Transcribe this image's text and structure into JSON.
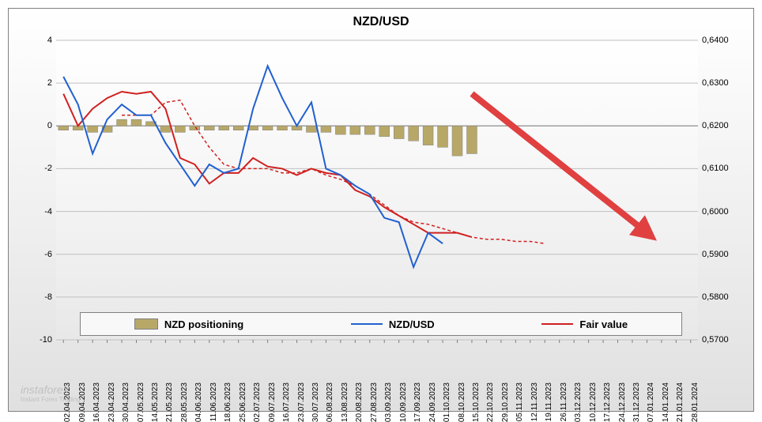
{
  "chart": {
    "title": "NZD/USD",
    "title_fontsize": 16,
    "title_color": "#000000",
    "background_gradient": [
      "#ffffff",
      "#f0f0f0",
      "#e0e0e0"
    ],
    "border_color": "#808080",
    "axis_left": {
      "min": -10,
      "max": 4,
      "ticks": [
        -10,
        -8,
        -6,
        -4,
        -2,
        0,
        2,
        4
      ],
      "label_fontsize": 11,
      "label_color": "#000000"
    },
    "axis_right": {
      "min": 0.57,
      "max": 0.64,
      "ticks": [
        "0,5700",
        "0,5800",
        "0,5900",
        "0,6000",
        "0,6100",
        "0,6200",
        "0,6300",
        "0,6400"
      ],
      "tick_values": [
        0.57,
        0.58,
        0.59,
        0.6,
        0.61,
        0.62,
        0.63,
        0.64
      ],
      "label_fontsize": 11,
      "label_color": "#000000"
    },
    "axis_x": {
      "labels": [
        "02.04.2023",
        "09.04.2023",
        "16.04.2023",
        "23.04.2023",
        "30.04.2023",
        "07.05.2023",
        "14.05.2023",
        "21.05.2023",
        "28.05.2023",
        "04.06.2023",
        "11.06.2023",
        "18.06.2023",
        "25.06.2023",
        "02.07.2023",
        "09.07.2023",
        "16.07.2023",
        "23.07.2023",
        "30.07.2023",
        "06.08.2023",
        "13.08.2023",
        "20.08.2023",
        "27.08.2023",
        "03.09.2023",
        "10.09.2023",
        "17.09.2023",
        "24.09.2023",
        "01.10.2023",
        "08.10.2023",
        "15.10.2023",
        "22.10.2023",
        "29.10.2023",
        "05.11.2023",
        "12.11.2023",
        "19.11.2023",
        "26.11.2023",
        "03.12.2023",
        "10.12.2023",
        "17.12.2023",
        "24.12.2023",
        "31.12.2023",
        "07.01.2024",
        "14.01.2024",
        "21.01.2024",
        "28.01.2024"
      ],
      "label_fontsize": 10,
      "rotation": -90
    },
    "gridline_color": "#c0c0c0",
    "series": {
      "positioning": {
        "label": "NZD positioning",
        "type": "bar",
        "color": "#b8a868",
        "border_color": "#808080",
        "bar_width": 0.7,
        "values": [
          -0.2,
          -0.2,
          -0.3,
          -0.3,
          0.3,
          0.3,
          0.2,
          -0.3,
          -0.3,
          -0.2,
          -0.2,
          -0.2,
          -0.2,
          -0.2,
          -0.2,
          -0.2,
          -0.2,
          -0.3,
          -0.3,
          -0.4,
          -0.4,
          -0.4,
          -0.5,
          -0.6,
          -0.7,
          -0.9,
          -1.0,
          -1.4,
          -1.3,
          null,
          null,
          null,
          null,
          null,
          null,
          null,
          null,
          null,
          null,
          null,
          null,
          null,
          null,
          null
        ]
      },
      "nzdusd": {
        "label": "NZD/USD",
        "type": "line",
        "color": "#2060d0",
        "line_width": 2,
        "values": [
          2.3,
          1.0,
          -1.3,
          0.3,
          1.0,
          0.5,
          0.5,
          -0.8,
          -1.8,
          -2.8,
          -1.8,
          -2.2,
          -2.0,
          0.8,
          2.8,
          1.3,
          0.0,
          1.1,
          -2.0,
          -2.3,
          -2.8,
          -3.2,
          -4.3,
          -4.5,
          -6.6,
          -5.0,
          -5.5,
          null,
          null,
          null,
          null,
          null,
          null,
          null,
          null,
          null,
          null,
          null,
          null,
          null,
          null,
          null,
          null,
          null
        ]
      },
      "fairvalue": {
        "label": "Fair value",
        "type": "line",
        "color": "#d02020",
        "line_width": 2,
        "values": [
          1.5,
          0.0,
          0.8,
          1.3,
          1.6,
          1.5,
          1.6,
          0.8,
          -1.5,
          -1.8,
          -2.7,
          -2.2,
          -2.2,
          -1.5,
          -1.9,
          -2.0,
          -2.3,
          -2.0,
          -2.2,
          -2.3,
          -3.0,
          -3.3,
          -3.8,
          -4.2,
          -4.6,
          -5.0,
          -5.0,
          -5.0,
          -5.2,
          null,
          null,
          null,
          null,
          null,
          null,
          null,
          null,
          null,
          null,
          null,
          null,
          null,
          null,
          null
        ]
      },
      "fairvalue_dashed": {
        "type": "line_dashed",
        "color": "#d02020",
        "line_width": 1.5,
        "dash": "4,3",
        "values": [
          null,
          null,
          null,
          null,
          0.5,
          0.5,
          0.5,
          1.1,
          1.2,
          0.0,
          -1.0,
          -1.8,
          -2.0,
          -2.0,
          -2.0,
          -2.2,
          -2.2,
          -2.0,
          -2.3,
          -2.5,
          -2.8,
          -3.2,
          -3.7,
          -4.2,
          -4.5,
          -4.6,
          -4.8,
          -5.0,
          -5.2,
          -5.3,
          -5.3,
          -5.4,
          -5.4,
          -5.5,
          null,
          null,
          null,
          null,
          null,
          null,
          null,
          null,
          null,
          null
        ]
      }
    },
    "arrow": {
      "color": "#e04040",
      "start_x_idx": 28,
      "start_y": 1.5,
      "end_x_idx": 40,
      "end_y": -5.0,
      "width": 8
    },
    "legend": {
      "border_color": "#808080",
      "background": "#f8f8f8",
      "fontsize": 13,
      "items": [
        "NZD positioning",
        "NZD/USD",
        "Fair value"
      ]
    },
    "watermark": {
      "text": "instaforex",
      "subtext": "Instant Forex Trading",
      "color": "#c0c0c0"
    }
  }
}
